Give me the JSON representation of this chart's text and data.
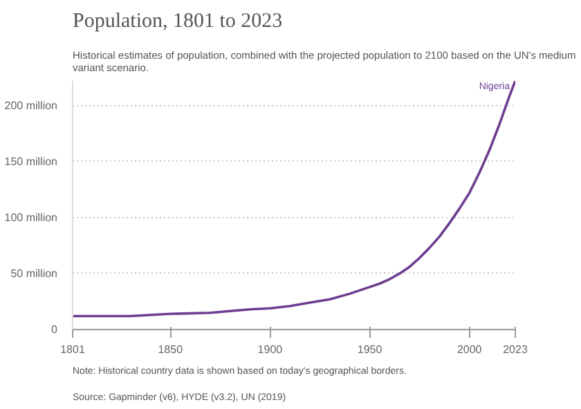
{
  "chart_data": {
    "type": "line",
    "title": "Population, 1801 to 2023",
    "subtitle": "Historical estimates of population, combined with the projected population to 2100 based on the UN's medium\nvariant scenario.",
    "x": [
      1801,
      1820,
      1830,
      1850,
      1870,
      1890,
      1900,
      1910,
      1920,
      1930,
      1940,
      1950,
      1955,
      1960,
      1965,
      1970,
      1975,
      1980,
      1985,
      1990,
      1995,
      2000,
      2005,
      2010,
      2015,
      2020,
      2023
    ],
    "series": [
      {
        "name": "Nigeria",
        "color": "#6d3e91",
        "values": [
          12,
          12,
          12,
          14,
          15,
          18,
          19,
          21,
          24,
          27,
          32,
          38,
          41,
          45,
          50,
          56,
          64,
          73,
          83,
          95,
          108,
          122,
          140,
          160,
          183,
          208,
          222
        ]
      }
    ],
    "xlim": [
      1801,
      2023
    ],
    "xticks": [
      1801,
      1850,
      1900,
      1950,
      2000,
      2023
    ],
    "yticks": [
      {
        "value": 0,
        "label": "0"
      },
      {
        "value": 50,
        "label": "50 million"
      },
      {
        "value": 100,
        "label": "100 million"
      },
      {
        "value": 150,
        "label": "150 million"
      },
      {
        "value": 200,
        "label": "200 million"
      }
    ],
    "ylim": [
      0,
      222
    ],
    "grid": "y",
    "line_style": "solid",
    "annotations": [
      "Source: Gapminder (v6), HYDE (v3.2), UN (2019)",
      "Note: Historical country data is shown based on today's geographical borders."
    ]
  }
}
